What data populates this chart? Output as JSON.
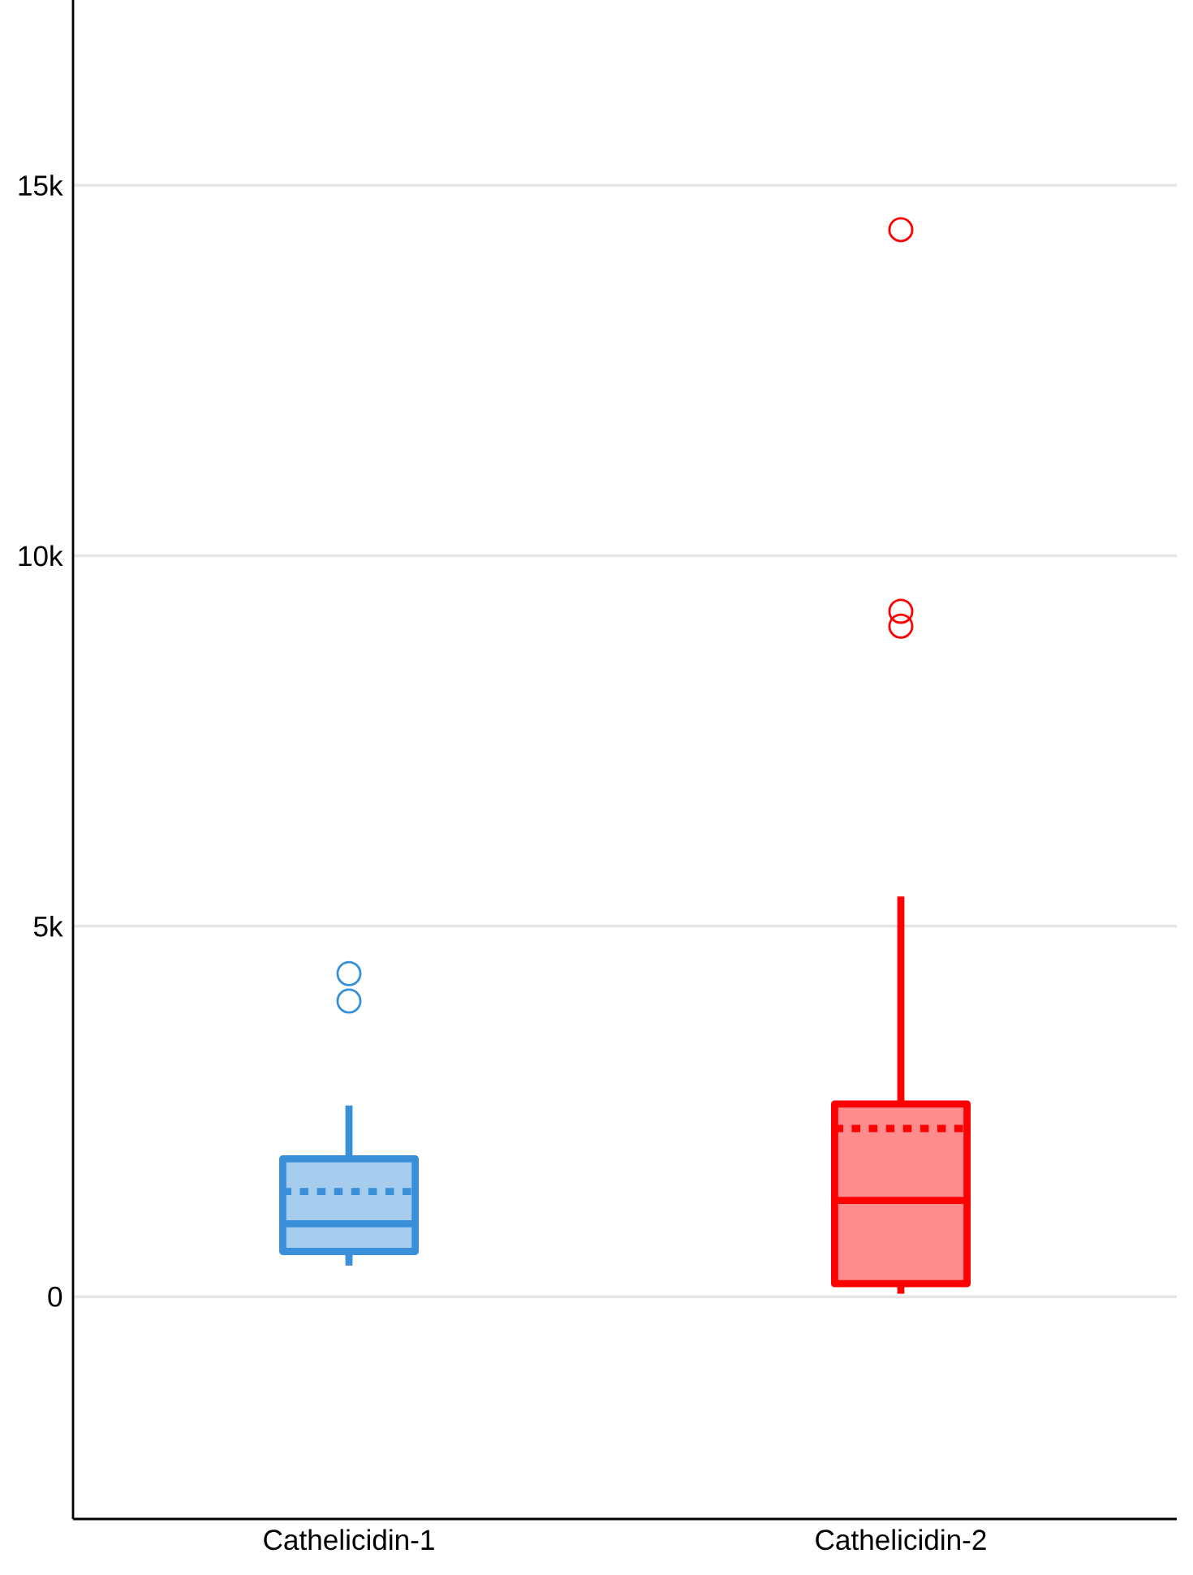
{
  "chart_data": {
    "type": "box",
    "categories": [
      "Cathelicidin-1",
      "Cathelicidin-2"
    ],
    "series": [
      {
        "color": "#3a8fd9",
        "boxes": [
          {
            "low": 420,
            "q1": 610,
            "median": 985,
            "q3": 1860,
            "high": 2580,
            "mean": 1420,
            "outliers": [
              3990,
              4360
            ]
          },
          null
        ]
      },
      {
        "color": "#ff0000",
        "boxes": [
          null,
          {
            "low": 40,
            "q1": 175,
            "median": 1300,
            "q3": 2600,
            "high": 5400,
            "mean": 2270,
            "outliers": [
              9050,
              9250,
              14400
            ]
          }
        ]
      }
    ],
    "ylim": [
      -3000,
      17500
    ],
    "yticks": [
      0,
      {
        "value": 5000,
        "label": "5k"
      },
      {
        "value": 10000,
        "label": "10k"
      },
      {
        "value": 15000,
        "label": "15k"
      }
    ],
    "grid": "y"
  }
}
